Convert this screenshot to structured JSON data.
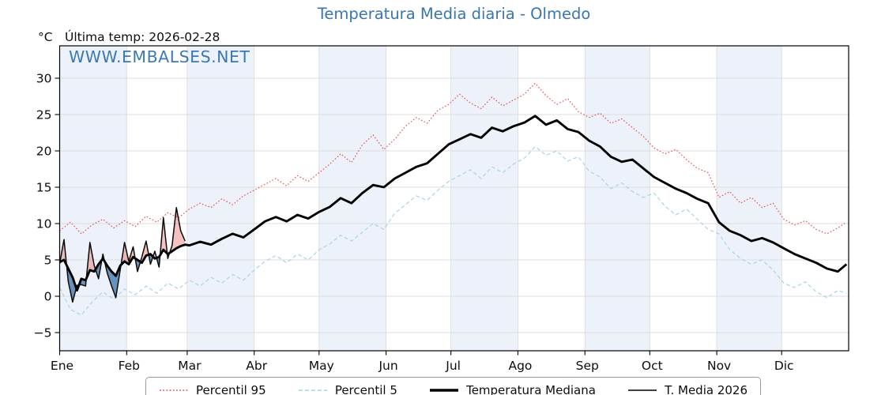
{
  "title": "Temperatura Media diaria - Olmedo",
  "header": {
    "unit_label": "°C",
    "last_temp_label": "Última temp: 2026-02-28"
  },
  "watermark": "WWW.EMBALSES.NET",
  "legend": {
    "items": [
      {
        "label": "Percentil 95",
        "style": "dotted",
        "color": "#e85050"
      },
      {
        "label": "Percentil 5",
        "style": "dashed",
        "color": "#a8d4e6"
      },
      {
        "label": "Temperatura Mediana",
        "style": "solid-thick",
        "color": "#000000"
      },
      {
        "label": "T. Media 2026",
        "style": "solid-thin",
        "color": "#000000"
      }
    ]
  },
  "chart_data": {
    "type": "line",
    "title": "Temperatura Media diaria - Olmedo",
    "xlabel": "",
    "ylabel": "°C",
    "ylim": [
      -7.5,
      34.5
    ],
    "yticks": [
      -5,
      0,
      5,
      10,
      15,
      20,
      25,
      30
    ],
    "x_month_labels": [
      "Ene",
      "Feb",
      "Mar",
      "Abr",
      "May",
      "Jun",
      "Jul",
      "Ago",
      "Sep",
      "Oct",
      "Nov",
      "Dic"
    ],
    "month_start_days": [
      1,
      32,
      60,
      91,
      121,
      152,
      182,
      213,
      244,
      274,
      305,
      335,
      366
    ],
    "shaded_month_indices": [
      0,
      2,
      4,
      6,
      8,
      10
    ],
    "grid": true,
    "legend_position": "bottom",
    "colors": {
      "band": "#edf2fa",
      "grid": "#dcdcdc",
      "frame": "#000000",
      "fill_above": "rgba(225,70,65,0.33)",
      "fill_below": "rgba(47,104,160,0.70)"
    },
    "series": [
      {
        "name": "Percentil 95",
        "role": "p95",
        "color": "#e85050",
        "style": "dotted",
        "width": 1.2,
        "days": [
          1,
          6,
          11,
          16,
          21,
          26,
          31,
          36,
          41,
          46,
          51,
          56,
          61,
          66,
          71,
          76,
          81,
          86,
          91,
          96,
          101,
          106,
          111,
          116,
          121,
          126,
          131,
          136,
          141,
          146,
          151,
          156,
          161,
          166,
          171,
          176,
          181,
          186,
          191,
          196,
          201,
          206,
          211,
          216,
          221,
          226,
          231,
          236,
          241,
          246,
          251,
          256,
          261,
          266,
          271,
          276,
          281,
          286,
          291,
          296,
          301,
          306,
          311,
          316,
          321,
          326,
          331,
          336,
          341,
          346,
          351,
          356,
          361,
          365
        ],
        "values": [
          9.0,
          10.2,
          8.6,
          9.8,
          10.6,
          9.4,
          10.4,
          9.6,
          11.0,
          10.2,
          11.5,
          10.8,
          12.0,
          12.8,
          12.2,
          13.4,
          12.6,
          13.8,
          14.6,
          15.4,
          16.2,
          15.2,
          16.6,
          15.8,
          17.0,
          18.2,
          19.6,
          18.4,
          20.8,
          22.2,
          20.2,
          21.6,
          23.4,
          24.6,
          23.8,
          25.6,
          26.4,
          27.8,
          26.6,
          25.8,
          27.4,
          26.2,
          27.0,
          27.8,
          29.3,
          27.6,
          26.4,
          27.2,
          25.4,
          24.6,
          25.2,
          23.8,
          24.4,
          23.2,
          22.0,
          20.4,
          19.6,
          20.2,
          18.8,
          17.6,
          17.0,
          13.6,
          14.4,
          12.8,
          13.6,
          12.2,
          12.8,
          10.6,
          9.8,
          10.4,
          9.2,
          8.6,
          9.4,
          10.2
        ]
      },
      {
        "name": "Percentil 5",
        "role": "p5",
        "color": "#a8d4e6",
        "style": "dashed",
        "width": 1.2,
        "days": [
          1,
          6,
          11,
          16,
          21,
          26,
          31,
          36,
          41,
          46,
          51,
          56,
          61,
          66,
          71,
          76,
          81,
          86,
          91,
          96,
          101,
          106,
          111,
          116,
          121,
          126,
          131,
          136,
          141,
          146,
          151,
          156,
          161,
          166,
          171,
          176,
          181,
          186,
          191,
          196,
          201,
          206,
          211,
          216,
          221,
          226,
          231,
          236,
          241,
          246,
          251,
          256,
          261,
          266,
          271,
          276,
          281,
          286,
          291,
          296,
          301,
          306,
          311,
          316,
          321,
          326,
          331,
          336,
          341,
          346,
          351,
          356,
          361,
          365
        ],
        "values": [
          1.2,
          -1.8,
          -2.6,
          -0.8,
          0.6,
          -0.4,
          1.0,
          0.2,
          1.4,
          0.4,
          1.8,
          1.0,
          2.2,
          1.4,
          2.6,
          1.8,
          3.0,
          2.2,
          3.6,
          4.8,
          5.6,
          4.6,
          5.8,
          5.0,
          6.4,
          7.2,
          8.4,
          7.6,
          8.8,
          10.0,
          9.2,
          11.4,
          12.6,
          13.8,
          13.2,
          14.6,
          15.8,
          16.6,
          17.4,
          16.2,
          17.8,
          17.0,
          18.2,
          19.0,
          20.6,
          19.4,
          20.0,
          18.6,
          19.2,
          17.2,
          16.4,
          14.8,
          15.6,
          14.4,
          13.6,
          14.2,
          12.4,
          11.2,
          12.0,
          10.6,
          9.2,
          8.6,
          6.4,
          5.2,
          4.4,
          5.0,
          3.6,
          1.8,
          1.2,
          2.0,
          0.6,
          -0.2,
          0.8,
          0.4
        ]
      },
      {
        "name": "Temperatura Mediana",
        "role": "median",
        "color": "#000000",
        "style": "solid",
        "width": 2.9,
        "days": [
          1,
          3,
          5,
          7,
          9,
          11,
          13,
          15,
          17,
          19,
          21,
          23,
          25,
          27,
          29,
          31,
          33,
          35,
          37,
          39,
          41,
          43,
          45,
          47,
          49,
          51,
          53,
          55,
          57,
          59,
          61,
          66,
          71,
          76,
          81,
          86,
          91,
          96,
          101,
          106,
          111,
          116,
          121,
          126,
          131,
          136,
          141,
          146,
          151,
          156,
          161,
          166,
          171,
          176,
          181,
          186,
          191,
          196,
          201,
          206,
          211,
          216,
          221,
          226,
          231,
          236,
          241,
          246,
          251,
          256,
          261,
          266,
          271,
          276,
          281,
          286,
          291,
          296,
          301,
          306,
          311,
          316,
          321,
          326,
          331,
          336,
          341,
          346,
          351,
          356,
          361,
          365
        ],
        "values": [
          4.7,
          5.0,
          3.8,
          2.6,
          0.8,
          2.4,
          2.2,
          3.6,
          3.4,
          4.4,
          5.2,
          4.2,
          3.4,
          2.8,
          4.2,
          4.8,
          4.4,
          5.4,
          5.0,
          4.6,
          5.6,
          5.8,
          5.2,
          5.4,
          6.4,
          5.8,
          6.2,
          6.6,
          6.9,
          7.1,
          7.0,
          7.5,
          7.1,
          7.9,
          8.6,
          8.1,
          9.2,
          10.3,
          10.9,
          10.3,
          11.2,
          10.7,
          11.6,
          12.3,
          13.5,
          12.8,
          14.2,
          15.3,
          15.0,
          16.2,
          17.0,
          17.8,
          18.3,
          19.6,
          20.9,
          21.6,
          22.3,
          21.8,
          23.2,
          22.7,
          23.4,
          23.9,
          24.8,
          23.6,
          24.2,
          23.0,
          22.6,
          21.4,
          20.6,
          19.2,
          18.5,
          18.8,
          17.6,
          16.4,
          15.6,
          14.8,
          14.2,
          13.4,
          12.8,
          10.2,
          9.0,
          8.4,
          7.6,
          8.0,
          7.4,
          6.6,
          5.8,
          5.2,
          4.6,
          3.8,
          3.4,
          4.4
        ]
      },
      {
        "name": "T. Media 2026",
        "role": "current",
        "color": "#0a0a0a",
        "style": "solid",
        "width": 1.5,
        "days": [
          1,
          3,
          5,
          7,
          9,
          11,
          13,
          15,
          17,
          19,
          21,
          23,
          25,
          27,
          29,
          31,
          33,
          35,
          37,
          39,
          41,
          43,
          45,
          47,
          49,
          51,
          53,
          55,
          57,
          59
        ],
        "values": [
          4.5,
          7.8,
          2.0,
          -0.8,
          1.5,
          1.6,
          1.4,
          7.4,
          4.2,
          2.4,
          5.8,
          3.2,
          1.4,
          -0.2,
          3.6,
          7.4,
          4.8,
          6.8,
          3.4,
          5.4,
          7.6,
          4.4,
          6.2,
          4.0,
          10.8,
          5.2,
          7.0,
          12.2,
          9.0,
          7.6
        ]
      }
    ]
  }
}
